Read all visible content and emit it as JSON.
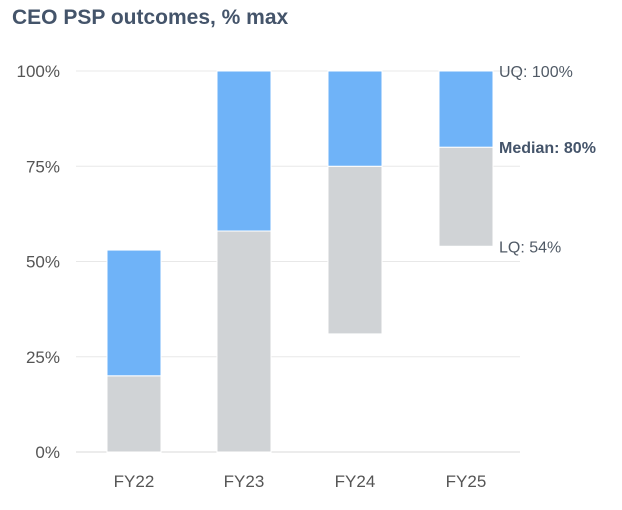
{
  "chart_data": {
    "type": "bar",
    "title": "CEO PSP outcomes, % max",
    "categories": [
      "FY22",
      "FY23",
      "FY24",
      "FY25"
    ],
    "series": [
      {
        "name": "lower segment",
        "color": "#d0d3d6",
        "base": [
          0,
          0,
          31,
          54
        ],
        "top": [
          20,
          58,
          75,
          80
        ]
      },
      {
        "name": "upper segment",
        "color": "#6fb3f8",
        "base": [
          20,
          58,
          75,
          80
        ],
        "top": [
          53,
          100,
          100,
          100
        ]
      }
    ],
    "yticks": [
      0,
      25,
      50,
      75,
      100
    ],
    "ytick_labels": [
      "0%",
      "25%",
      "50%",
      "75%",
      "100%"
    ],
    "ylim": [
      0,
      100
    ],
    "xlabel": "",
    "ylabel": "",
    "annotations": [
      {
        "text": "UQ: 100%",
        "value": 100,
        "bold": false
      },
      {
        "text": "Median: 80%",
        "value": 80,
        "bold": true
      },
      {
        "text": "LQ: 54%",
        "value": 54,
        "bold": false
      }
    ]
  }
}
